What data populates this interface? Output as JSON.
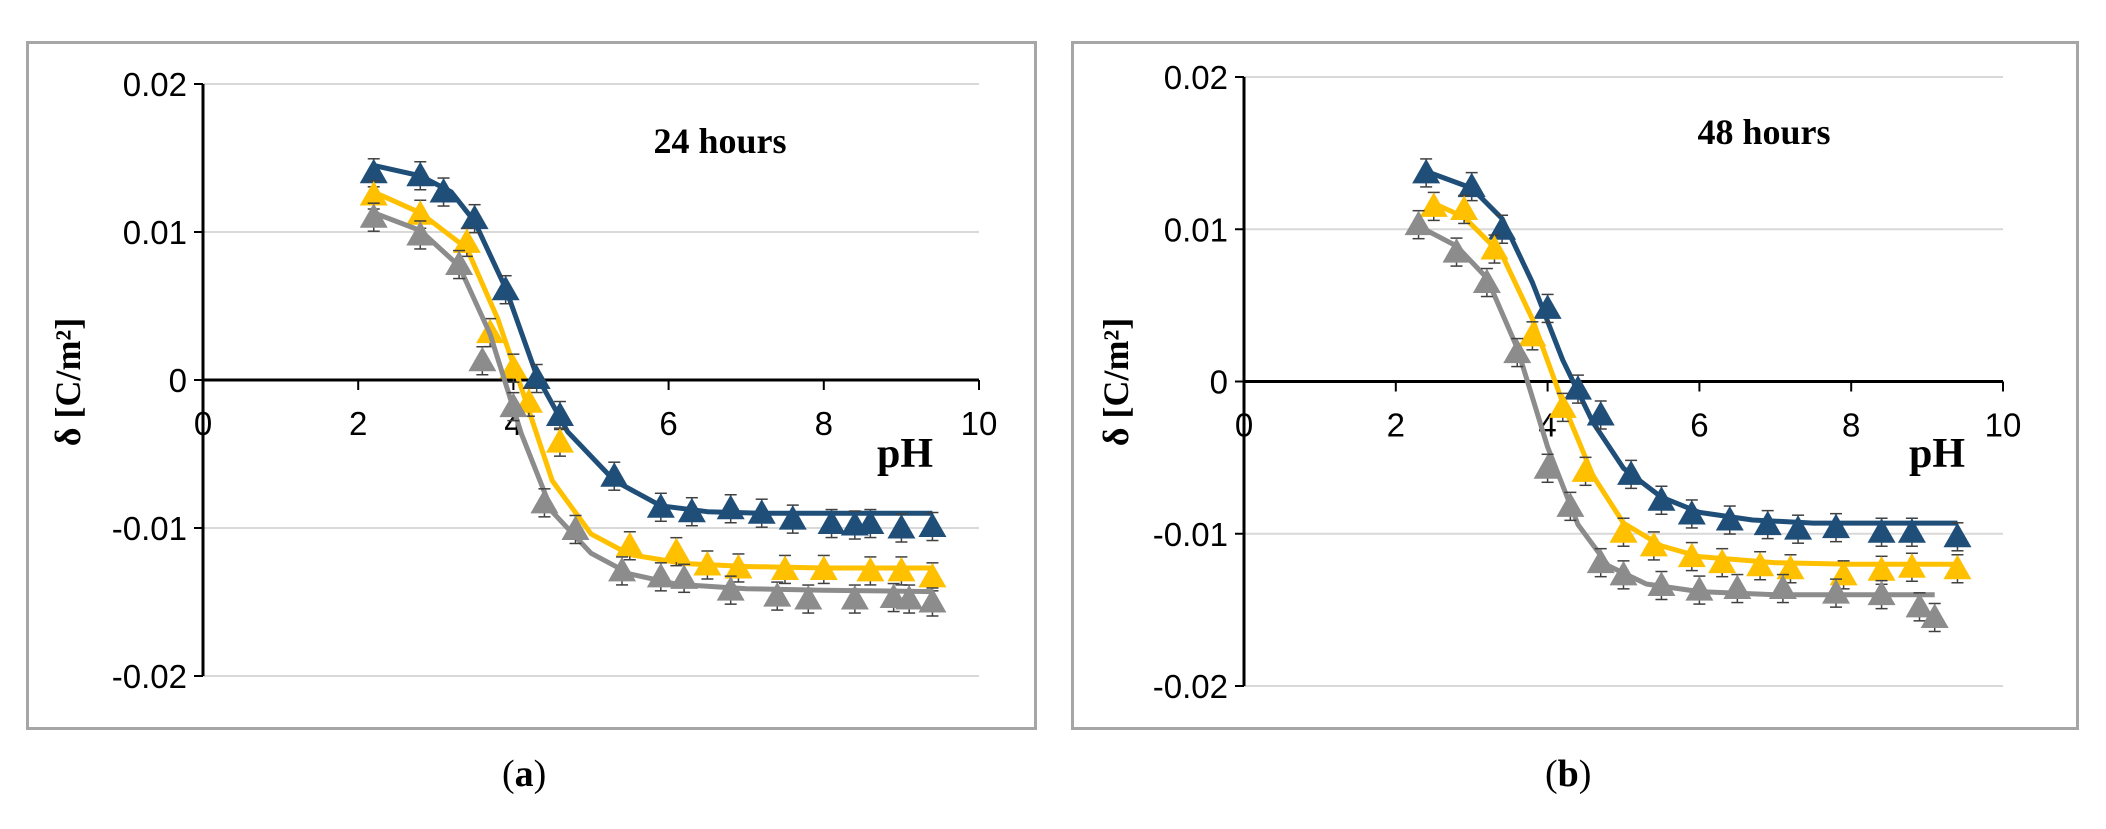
{
  "colors": {
    "series1": "#1f4e79",
    "series2": "#ffc000",
    "series3": "#8c8c8c",
    "axis": "#000000",
    "grid": "#d9d9d9",
    "frame": "#a6a6a6"
  },
  "chart_data": [
    {
      "type": "line",
      "panel": "a",
      "title": "24 hours",
      "xlabel": "pH",
      "ylabel": "δ  [C/m²]",
      "xlim": [
        0,
        10
      ],
      "ylim": [
        -0.02,
        0.02
      ],
      "xticks": [
        "0",
        "2",
        "4",
        "6",
        "8",
        "10"
      ],
      "yticks": [
        "0.02",
        "0.01",
        "0",
        "-0.01",
        "-0.02"
      ],
      "grid": "horizontal",
      "series": [
        {
          "color": "#1f4e79",
          "points": [
            [
              2.2,
              0.014
            ],
            [
              2.8,
              0.0138
            ],
            [
              3.1,
              0.0127
            ],
            [
              3.5,
              0.0109
            ],
            [
              3.9,
              0.0061
            ],
            [
              4.3,
              0.0001
            ],
            [
              4.6,
              -0.0024
            ],
            [
              5.3,
              -0.0065
            ],
            [
              5.9,
              -0.0086
            ],
            [
              6.3,
              -0.0089
            ],
            [
              6.8,
              -0.0087
            ],
            [
              7.2,
              -0.009
            ],
            [
              7.6,
              -0.0094
            ],
            [
              8.1,
              -0.0097
            ],
            [
              8.4,
              -0.0098
            ],
            [
              8.6,
              -0.0097
            ],
            [
              9.0,
              -0.01
            ],
            [
              9.4,
              -0.0099
            ]
          ],
          "fit": [
            [
              2.2,
              0.0145
            ],
            [
              2.8,
              0.0138
            ],
            [
              3.2,
              0.0127
            ],
            [
              3.5,
              0.0107
            ],
            [
              3.9,
              0.0062
            ],
            [
              4.3,
              0.0003
            ],
            [
              4.7,
              -0.0035
            ],
            [
              5.3,
              -0.0068
            ],
            [
              5.9,
              -0.0085
            ],
            [
              6.5,
              -0.0089
            ],
            [
              7.2,
              -0.009
            ],
            [
              8.0,
              -0.009
            ],
            [
              9.4,
              -0.009
            ]
          ]
        },
        {
          "color": "#ffc000",
          "points": [
            [
              2.2,
              0.0125
            ],
            [
              2.8,
              0.0112
            ],
            [
              3.4,
              0.0093
            ],
            [
              3.7,
              0.0032
            ],
            [
              4.0,
              0.0008
            ],
            [
              4.2,
              -0.0015
            ],
            [
              4.6,
              -0.0042
            ],
            [
              5.5,
              -0.0112
            ],
            [
              6.1,
              -0.0116
            ],
            [
              6.5,
              -0.0125
            ],
            [
              6.9,
              -0.0127
            ],
            [
              7.5,
              -0.0128
            ],
            [
              8.0,
              -0.0128
            ],
            [
              8.6,
              -0.0129
            ],
            [
              9.0,
              -0.0129
            ],
            [
              9.4,
              -0.0133
            ]
          ],
          "fit": [
            [
              2.2,
              0.0127
            ],
            [
              2.8,
              0.0113
            ],
            [
              3.4,
              0.0089
            ],
            [
              3.8,
              0.0041
            ],
            [
              4.1,
              -0.0005
            ],
            [
              4.5,
              -0.0068
            ],
            [
              5.0,
              -0.0104
            ],
            [
              5.5,
              -0.0118
            ],
            [
              6.2,
              -0.0124
            ],
            [
              7.0,
              -0.0126
            ],
            [
              8.0,
              -0.0127
            ],
            [
              9.4,
              -0.0127
            ]
          ]
        },
        {
          "color": "#8c8c8c",
          "points": [
            [
              2.2,
              0.011
            ],
            [
              2.8,
              0.0098
            ],
            [
              3.3,
              0.0078
            ],
            [
              3.6,
              0.0013
            ],
            [
              4.0,
              -0.0018
            ],
            [
              4.4,
              -0.0083
            ],
            [
              4.8,
              -0.0101
            ],
            [
              5.4,
              -0.0129
            ],
            [
              5.9,
              -0.0133
            ],
            [
              6.2,
              -0.0134
            ],
            [
              6.8,
              -0.0142
            ],
            [
              7.4,
              -0.0146
            ],
            [
              7.8,
              -0.0148
            ],
            [
              8.4,
              -0.0148
            ],
            [
              8.9,
              -0.0147
            ],
            [
              9.1,
              -0.0148
            ],
            [
              9.4,
              -0.015
            ]
          ],
          "fit": [
            [
              2.2,
              0.0113
            ],
            [
              2.8,
              0.0101
            ],
            [
              3.3,
              0.0077
            ],
            [
              3.7,
              0.0031
            ],
            [
              4.1,
              -0.0036
            ],
            [
              4.5,
              -0.0089
            ],
            [
              5.0,
              -0.0117
            ],
            [
              5.5,
              -0.0131
            ],
            [
              6.1,
              -0.0138
            ],
            [
              7.0,
              -0.0141
            ],
            [
              8.0,
              -0.0142
            ],
            [
              9.4,
              -0.0143
            ]
          ]
        }
      ]
    },
    {
      "type": "line",
      "panel": "b",
      "title": "48 hours",
      "xlabel": "pH",
      "ylabel": "δ  [C/m²]",
      "xlim": [
        0,
        10
      ],
      "ylim": [
        -0.02,
        0.02
      ],
      "xticks": [
        "0",
        "2",
        "4",
        "6",
        "8",
        "10"
      ],
      "yticks": [
        "0.02",
        "0.01",
        "0",
        "-0.01",
        "-0.02"
      ],
      "grid": "horizontal",
      "series": [
        {
          "color": "#1f4e79",
          "points": [
            [
              2.4,
              0.0137
            ],
            [
              3.0,
              0.0128
            ],
            [
              3.4,
              0.01
            ],
            [
              4.0,
              0.0048
            ],
            [
              4.4,
              -0.0005
            ],
            [
              4.7,
              -0.0022
            ],
            [
              5.1,
              -0.0061
            ],
            [
              5.5,
              -0.0078
            ],
            [
              5.9,
              -0.0087
            ],
            [
              6.4,
              -0.0091
            ],
            [
              6.9,
              -0.0094
            ],
            [
              7.3,
              -0.0097
            ],
            [
              7.8,
              -0.0096
            ],
            [
              8.4,
              -0.0099
            ],
            [
              8.8,
              -0.0099
            ],
            [
              9.4,
              -0.0102
            ]
          ],
          "fit": [
            [
              2.4,
              0.0138
            ],
            [
              3.0,
              0.0127
            ],
            [
              3.4,
              0.0107
            ],
            [
              3.8,
              0.0065
            ],
            [
              4.2,
              0.0014
            ],
            [
              4.6,
              -0.0027
            ],
            [
              5.0,
              -0.0057
            ],
            [
              5.5,
              -0.0076
            ],
            [
              6.0,
              -0.0086
            ],
            [
              6.7,
              -0.0091
            ],
            [
              7.5,
              -0.0093
            ],
            [
              8.5,
              -0.0093
            ],
            [
              9.4,
              -0.0093
            ]
          ]
        },
        {
          "color": "#ffc000",
          "points": [
            [
              2.5,
              0.0115
            ],
            [
              2.9,
              0.0113
            ],
            [
              3.3,
              0.0087
            ],
            [
              3.8,
              0.003
            ],
            [
              4.2,
              -0.0017
            ],
            [
              4.5,
              -0.0059
            ],
            [
              5.0,
              -0.0099
            ],
            [
              5.4,
              -0.0108
            ],
            [
              5.9,
              -0.0115
            ],
            [
              6.3,
              -0.0119
            ],
            [
              6.8,
              -0.0121
            ],
            [
              7.2,
              -0.0123
            ],
            [
              7.9,
              -0.0127
            ],
            [
              8.4,
              -0.0124
            ],
            [
              8.8,
              -0.0122
            ],
            [
              9.4,
              -0.0123
            ]
          ],
          "fit": [
            [
              2.5,
              0.0117
            ],
            [
              2.9,
              0.0108
            ],
            [
              3.4,
              0.0083
            ],
            [
              3.8,
              0.0041
            ],
            [
              4.2,
              -0.0014
            ],
            [
              4.6,
              -0.0062
            ],
            [
              5.0,
              -0.0093
            ],
            [
              5.5,
              -0.0108
            ],
            [
              6.0,
              -0.0115
            ],
            [
              7.0,
              -0.0119
            ],
            [
              8.0,
              -0.012
            ],
            [
              9.4,
              -0.012
            ]
          ]
        },
        {
          "color": "#8c8c8c",
          "points": [
            [
              2.3,
              0.0103
            ],
            [
              2.8,
              0.0085
            ],
            [
              3.2,
              0.0065
            ],
            [
              3.6,
              0.0019
            ],
            [
              4.0,
              -0.0057
            ],
            [
              4.3,
              -0.0082
            ],
            [
              4.7,
              -0.0119
            ],
            [
              5.0,
              -0.0127
            ],
            [
              5.5,
              -0.0134
            ],
            [
              6.0,
              -0.0137
            ],
            [
              6.5,
              -0.0136
            ],
            [
              7.1,
              -0.0136
            ],
            [
              7.8,
              -0.0139
            ],
            [
              8.4,
              -0.014
            ],
            [
              8.9,
              -0.0148
            ],
            [
              9.1,
              -0.0155
            ]
          ],
          "fit": [
            [
              2.3,
              0.0102
            ],
            [
              2.8,
              0.0089
            ],
            [
              3.2,
              0.0068
            ],
            [
              3.6,
              0.0022
            ],
            [
              4.0,
              -0.0043
            ],
            [
              4.4,
              -0.0094
            ],
            [
              4.8,
              -0.0121
            ],
            [
              5.3,
              -0.0133
            ],
            [
              6.0,
              -0.0138
            ],
            [
              7.0,
              -0.014
            ],
            [
              8.0,
              -0.014
            ],
            [
              9.1,
              -0.014
            ]
          ]
        }
      ]
    }
  ],
  "captions": {
    "a": {
      "open": "(",
      "letter": "a",
      "close": ")"
    },
    "b": {
      "open": "(",
      "letter": "b",
      "close": ")"
    }
  }
}
